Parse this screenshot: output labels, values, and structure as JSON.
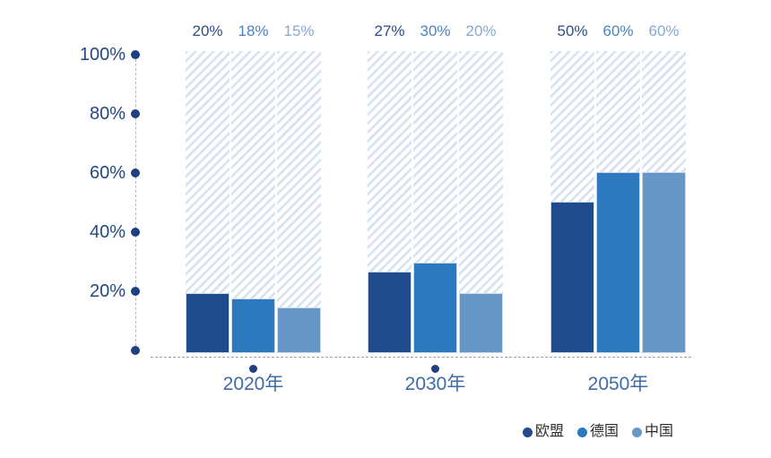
{
  "chart_data": {
    "type": "bar",
    "title": "",
    "categories": [
      "2020年",
      "2030年",
      "2050年"
    ],
    "category_marker_dots": [
      true,
      true,
      false
    ],
    "series": [
      {
        "name": "欧盟",
        "color": "#1f4a8c",
        "label_color": "#2a4f88",
        "values": [
          20,
          27,
          50
        ]
      },
      {
        "name": "德国",
        "color": "#2e78bd",
        "label_color": "#4b82bd",
        "values": [
          18,
          30,
          60
        ]
      },
      {
        "name": "中国",
        "color": "#6797c6",
        "label_color": "#84a9d3",
        "values": [
          15,
          20,
          60
        ]
      }
    ],
    "value_labels": [
      [
        "20%",
        "18%",
        "15%"
      ],
      [
        "27%",
        "30%",
        "20%"
      ],
      [
        "50%",
        "60%",
        "60%"
      ]
    ],
    "y_ticks": [
      "100%",
      "80%",
      "60%",
      "40%",
      "20%"
    ],
    "ylim": [
      0,
      100
    ],
    "grid": false,
    "legend_position": "bottom-right",
    "background_columns": "hatched-to-100%"
  },
  "theme": {
    "axis_dot_color": "#1e4080",
    "y_label_color": "#24497f",
    "category_label_color": "#3e6ca9",
    "legend_text_color": "#2d2d2d",
    "hatch_stripe_color": "#d6e2f0",
    "dashed_line_color": "#9aa0a5",
    "background": "#ffffff"
  }
}
